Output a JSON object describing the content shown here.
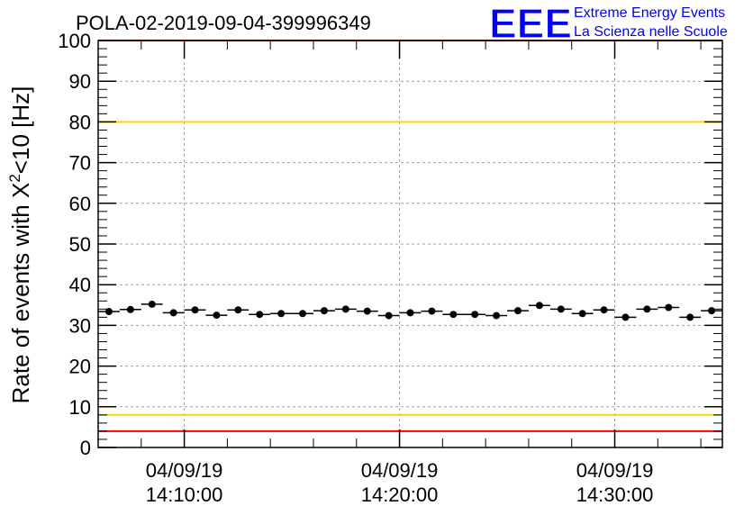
{
  "header": {
    "title": "POLA-02-2019-09-04-399996349",
    "logo_mark": "EEE",
    "logo_line1": "Extreme Energy Events",
    "logo_line2": "La Scienza nelle Scuole",
    "logo_color": "#0000ff"
  },
  "chart_data": {
    "type": "scatter",
    "title": "POLA-02-2019-09-04-399996349",
    "ylabel_parts": {
      "before": "Rate of events with ",
      "symbol": "X",
      "superscript": "2",
      "after": "<10 [Hz]"
    },
    "ylim": [
      0,
      100
    ],
    "yticks": [
      "0",
      "10",
      "20",
      "30",
      "40",
      "50",
      "60",
      "70",
      "80",
      "90",
      "100"
    ],
    "xlim_minutes": [
      6.0,
      35.0
    ],
    "xticks": [
      {
        "minute": 10,
        "date": "04/09/19",
        "time": "14:10:00"
      },
      {
        "minute": 20,
        "date": "04/09/19",
        "time": "14:20:00"
      },
      {
        "minute": 30,
        "date": "04/09/19",
        "time": "14:30:00"
      }
    ],
    "bin_width_minutes": 1,
    "points": [
      {
        "x": 6.5,
        "y": 33.4
      },
      {
        "x": 7.5,
        "y": 33.9
      },
      {
        "x": 8.5,
        "y": 35.2
      },
      {
        "x": 9.5,
        "y": 33.1
      },
      {
        "x": 10.5,
        "y": 33.8
      },
      {
        "x": 11.5,
        "y": 32.5
      },
      {
        "x": 12.5,
        "y": 33.8
      },
      {
        "x": 13.5,
        "y": 32.7
      },
      {
        "x": 14.5,
        "y": 32.9
      },
      {
        "x": 15.5,
        "y": 32.9
      },
      {
        "x": 16.5,
        "y": 33.6
      },
      {
        "x": 17.5,
        "y": 34.0
      },
      {
        "x": 18.5,
        "y": 33.5
      },
      {
        "x": 19.5,
        "y": 32.4
      },
      {
        "x": 20.5,
        "y": 33.1
      },
      {
        "x": 21.5,
        "y": 33.5
      },
      {
        "x": 22.5,
        "y": 32.7
      },
      {
        "x": 23.5,
        "y": 32.7
      },
      {
        "x": 24.5,
        "y": 32.4
      },
      {
        "x": 25.5,
        "y": 33.6
      },
      {
        "x": 26.5,
        "y": 34.9
      },
      {
        "x": 27.5,
        "y": 34.0
      },
      {
        "x": 28.5,
        "y": 32.9
      },
      {
        "x": 29.5,
        "y": 33.8
      },
      {
        "x": 30.5,
        "y": 32.0
      },
      {
        "x": 31.5,
        "y": 34.0
      },
      {
        "x": 32.5,
        "y": 34.4
      },
      {
        "x": 33.5,
        "y": 32.0
      },
      {
        "x": 34.5,
        "y": 33.6
      }
    ],
    "reference_lines": [
      {
        "y": 100,
        "color": "#ff0000"
      },
      {
        "y": 80,
        "color": "#ffd700"
      },
      {
        "y": 8,
        "color": "#ffd700"
      },
      {
        "y": 4,
        "color": "#ff0000"
      }
    ],
    "grid": true,
    "marker_color": "#000000"
  }
}
